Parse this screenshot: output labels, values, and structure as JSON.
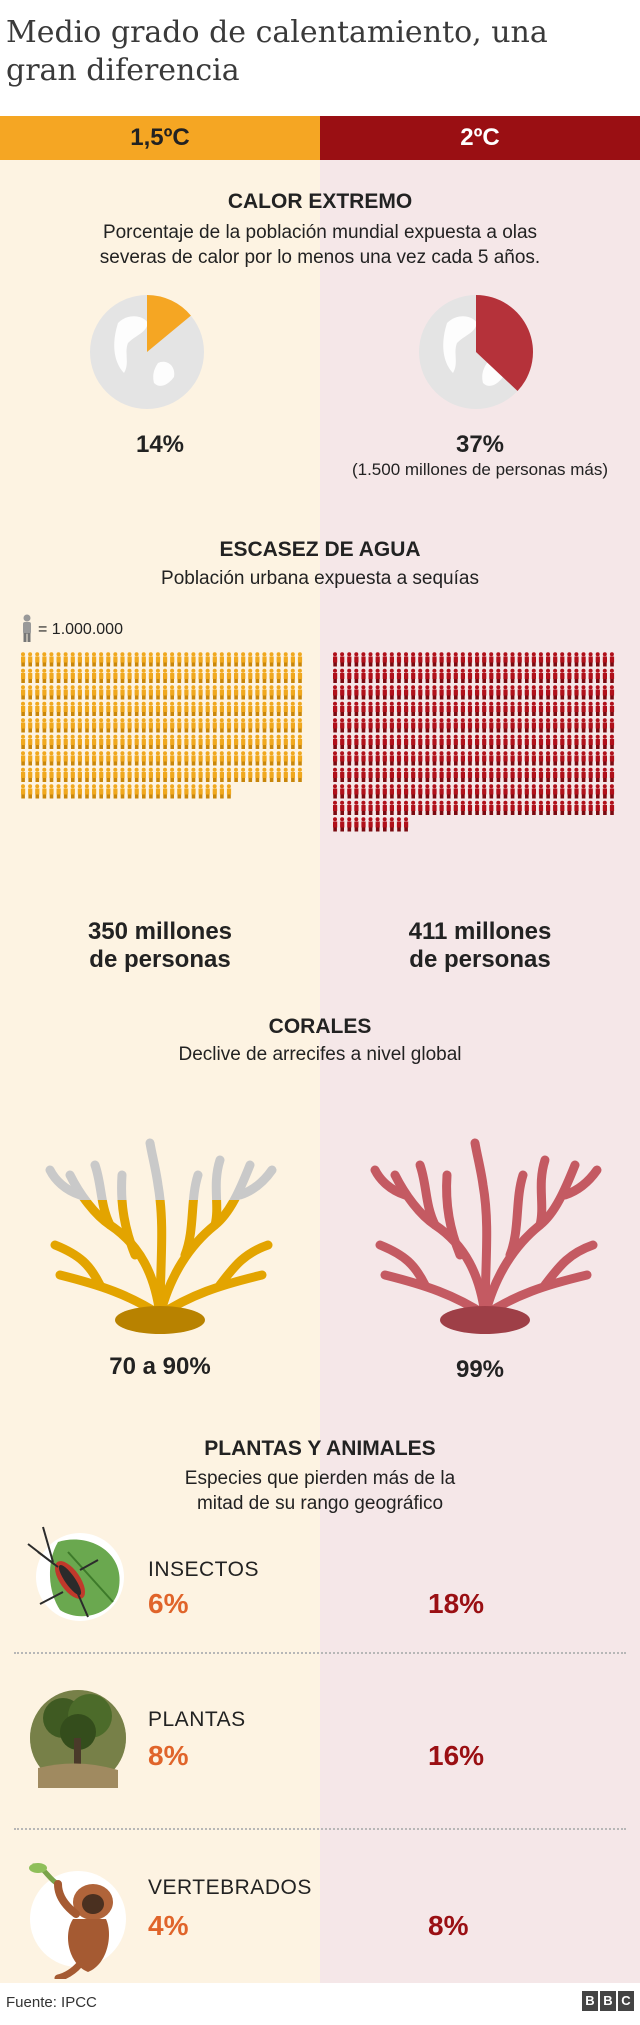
{
  "title": "Medio grado de calentamiento, una gran diferencia",
  "headers": {
    "left": "1,5ºC",
    "right": "2ºC"
  },
  "colors": {
    "orange": "#f5a623",
    "dark_red": "#9a0f13",
    "left_bg": "#fdf3e2",
    "right_bg": "#f5e7e8",
    "pct_orange": "#e0642a",
    "coral_red": "#c45a62"
  },
  "calor": {
    "title": "CALOR EXTREMO",
    "subtitle_line1": "Porcentaje de la población mundial expuesta a olas",
    "subtitle_line2": "severas de calor por lo menos una vez cada 5 años.",
    "left_value": "14%",
    "right_value": "37%",
    "right_note": "(1.500 millones de personas más)",
    "left_fraction": 0.14,
    "right_fraction": 0.37
  },
  "agua": {
    "title": "ESCASEZ DE AGUA",
    "subtitle": "Población urbana expuesta a sequías",
    "legend": "= 1.000.000",
    "left_line1": "350 millones",
    "left_line2": "de personas",
    "right_line1": "411 millones",
    "right_line2": "de personas",
    "left_count": 350,
    "right_count": 411
  },
  "corales": {
    "title": "CORALES",
    "subtitle": "Declive de arrecifes a nivel global",
    "left_value": "70 a 90%",
    "right_value": "99%"
  },
  "plantas_animales": {
    "title": "PLANTAS Y ANIMALES",
    "subtitle_line1": "Especies que pierden más de la",
    "subtitle_line2": "mitad de su rango geográfico",
    "rows": [
      {
        "label": "INSECTOS",
        "left": "6%",
        "right": "18%",
        "icon": "insect-icon"
      },
      {
        "label": "PLANTAS",
        "left": "8%",
        "right": "16%",
        "icon": "tree-icon"
      },
      {
        "label": "VERTEBRADOS",
        "left": "4%",
        "right": "8%",
        "icon": "monkey-icon"
      }
    ]
  },
  "footer": {
    "source": "Fuente: IPCC",
    "logo": [
      "B",
      "B",
      "C"
    ]
  }
}
